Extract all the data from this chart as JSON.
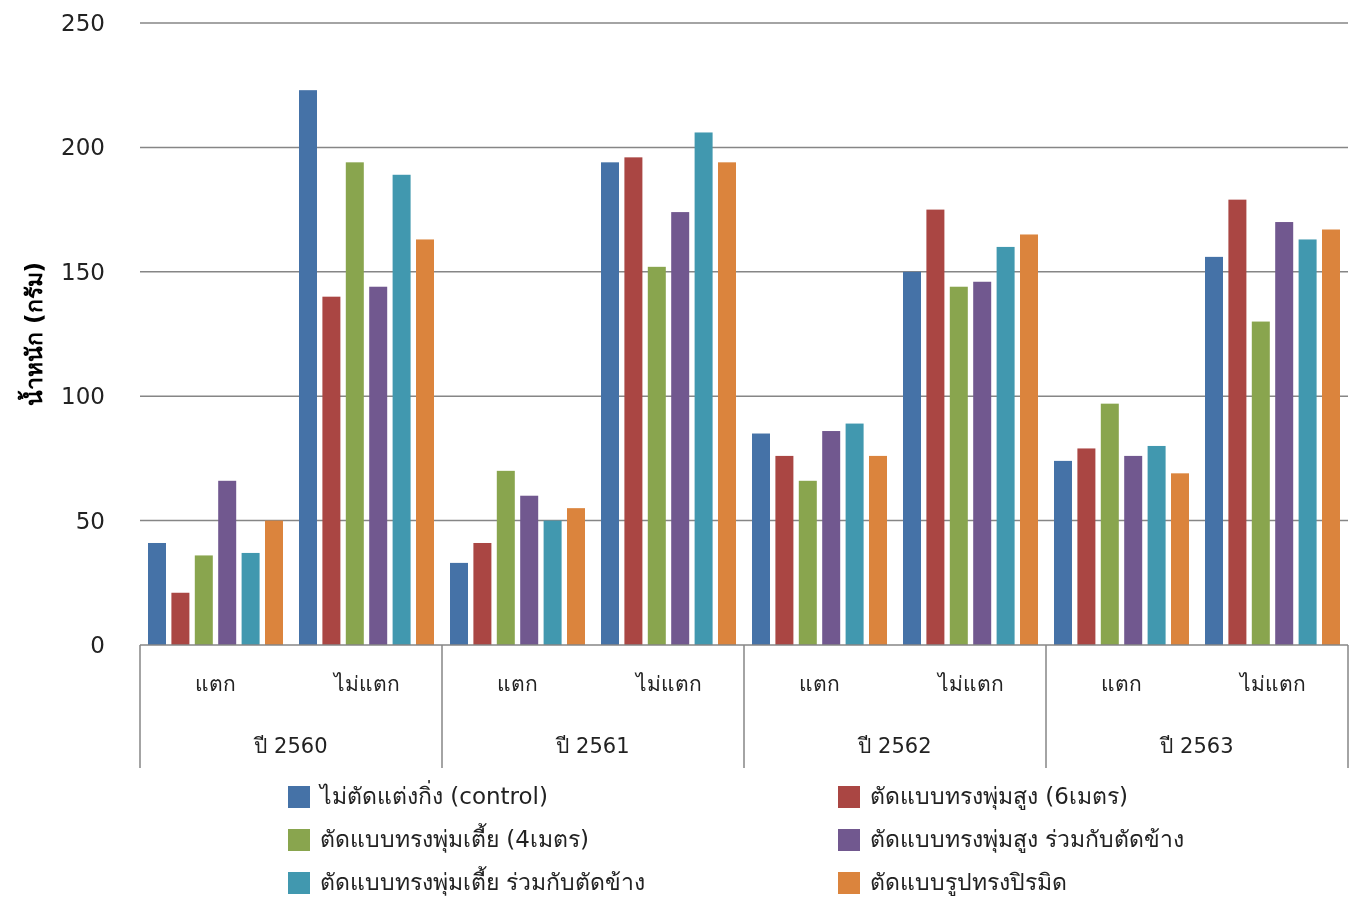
{
  "chart_data": {
    "type": "bar",
    "ylabel": "น้ำหนัก (กรัม)",
    "categories": [
      "แตก",
      "ไม่แตก",
      "แตก",
      "ไม่แตก",
      "แตก",
      "ไม่แตก",
      "แตก",
      "ไม่แตก"
    ],
    "annotations": [
      "ปี 2560",
      "ปี 2561",
      "ปี 2562",
      "ปี 2563"
    ],
    "series": [
      {
        "name": "ไม่ตัดแต่งกิ่ง (control)",
        "color": "#4572a7",
        "values": [
          41,
          223,
          33,
          194,
          85,
          150,
          74,
          156
        ]
      },
      {
        "name": "ตัดแบบทรงพุ่มสูง (6เมตร)",
        "color": "#aa4643",
        "values": [
          21,
          140,
          41,
          196,
          76,
          175,
          79,
          179
        ]
      },
      {
        "name": "ตัดแบบทรงพุ่มเตี้ย (4เมตร)",
        "color": "#89a54e",
        "values": [
          36,
          194,
          70,
          152,
          66,
          144,
          97,
          130
        ]
      },
      {
        "name": "ตัดแบบทรงพุ่มสูง ร่วมกับตัดข้าง",
        "color": "#71588f",
        "values": [
          66,
          144,
          60,
          174,
          86,
          146,
          76,
          170
        ]
      },
      {
        "name": "ตัดแบบทรงพุ่มเตี้ย ร่วมกับตัดข้าง",
        "color": "#4198af",
        "values": [
          37,
          189,
          50,
          206,
          89,
          160,
          80,
          163
        ]
      },
      {
        "name": "ตัดแบบรูปทรงปิรมิด",
        "color": "#db843d",
        "values": [
          50,
          163,
          55,
          194,
          76,
          165,
          69,
          167
        ]
      }
    ],
    "ylim": [
      0,
      250
    ],
    "yticks": [
      0,
      50,
      100,
      150,
      200,
      250
    ],
    "grid": "y",
    "legend": "bottom"
  }
}
